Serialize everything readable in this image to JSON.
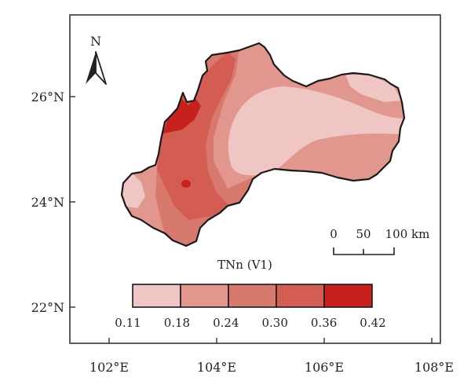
{
  "map": {
    "north_label": "N",
    "lat_ticks": [
      "26°N",
      "24°N",
      "22°N"
    ],
    "lon_ticks": [
      "102°E",
      "104°E",
      "106°E",
      "108°E"
    ],
    "scale_bar": {
      "labels": [
        "0",
        "50",
        "100 km"
      ]
    },
    "legend": {
      "title": "TNn (V1)",
      "class_colors": [
        "#efc6c4",
        "#e1978e",
        "#d8796e",
        "#d35d52",
        "#c8201c"
      ],
      "breaks": [
        "0.11",
        "0.18",
        "0.24",
        "0.30",
        "0.36",
        "0.42"
      ]
    },
    "region_colors": {
      "lightest": "#efc6c4",
      "light": "#e1978e",
      "medium": "#d8796e",
      "dark": "#d35d52",
      "darkest": "#c8201c"
    }
  }
}
